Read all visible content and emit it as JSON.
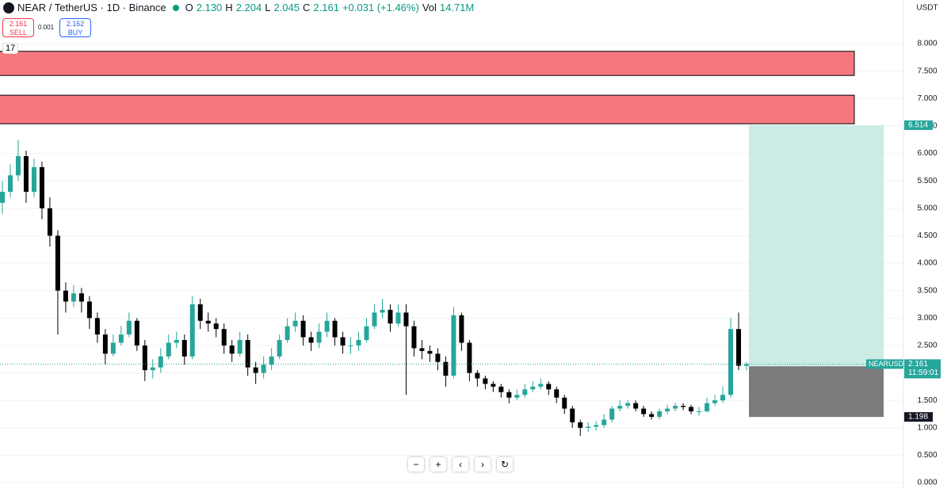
{
  "header": {
    "symbol": "NEAR / TetherUS · 1D · Binance",
    "ohlc": [
      {
        "key": "O",
        "value": "2.130"
      },
      {
        "key": "H",
        "value": "2.204"
      },
      {
        "key": "L",
        "value": "2.045"
      },
      {
        "key": "C",
        "value": "2.161"
      }
    ],
    "change": "+0.031 (+1.46%)",
    "vol_key": "Vol",
    "vol": "14.71M"
  },
  "trade": {
    "sell_price": "2.161",
    "sell": "SELL",
    "spread": "0.001",
    "buy_price": "2.162",
    "buy": "BUY"
  },
  "indicator_toggle": "17",
  "chart_data": {
    "type": "candlestick",
    "currency": "USDT",
    "ylim": [
      -0.115,
      8.795
    ],
    "yticks": [
      {
        "value": 0,
        "label": "0.000"
      },
      {
        "value": 0.5,
        "label": "0.500"
      },
      {
        "value": 1,
        "label": "1.000"
      },
      {
        "value": 1.5,
        "label": "1.500"
      },
      {
        "value": 2,
        "label": "2.000"
      },
      {
        "value": 2.5,
        "label": "2.500"
      },
      {
        "value": 3,
        "label": "3.000"
      },
      {
        "value": 3.5,
        "label": "3.500"
      },
      {
        "value": 4,
        "label": "4.000"
      },
      {
        "value": 4.5,
        "label": "4.500"
      },
      {
        "value": 5,
        "label": "5.000"
      },
      {
        "value": 5.5,
        "label": "5.500"
      },
      {
        "value": 6,
        "label": "6.000"
      },
      {
        "value": 6.5,
        "label": "6.500"
      },
      {
        "value": 7,
        "label": "7.000"
      },
      {
        "value": 7.5,
        "label": "7.500"
      },
      {
        "value": 8,
        "label": "8.000"
      }
    ],
    "grid": true,
    "series": [
      {
        "name": "NEARUSDT",
        "up_color": "#26a69a",
        "down_color": "#000000",
        "open": [
          5.1,
          5.3,
          5.6,
          5.95,
          5.3,
          5.75,
          5.0,
          4.5,
          3.5,
          3.3,
          3.45,
          3.3,
          3.0,
          2.7,
          2.35,
          2.55,
          2.7,
          2.95,
          2.5,
          2.05,
          2.1,
          2.3,
          2.55,
          2.6,
          2.3,
          3.25,
          2.95,
          2.9,
          2.8,
          2.5,
          2.35,
          2.6,
          2.1,
          2.0,
          2.15,
          2.3,
          2.6,
          2.85,
          2.95,
          2.65,
          2.55,
          2.75,
          2.95,
          2.65,
          2.5,
          2.5,
          2.6,
          2.85,
          3.1,
          3.15,
          2.9,
          3.1,
          2.85,
          2.45,
          2.4,
          2.35,
          2.2,
          1.95,
          3.05,
          2.55,
          2.0,
          1.9,
          1.8,
          1.75,
          1.65,
          1.55,
          1.6,
          1.7,
          1.75,
          1.8,
          1.7,
          1.55,
          1.35,
          1.1,
          1.0,
          1.02,
          1.05,
          1.15,
          1.35,
          1.4,
          1.45,
          1.35,
          1.25,
          1.2,
          1.3,
          1.35,
          1.4,
          1.38,
          1.3,
          1.3,
          1.45,
          1.5,
          1.6,
          2.8,
          2.13
        ],
        "high": [
          5.5,
          5.8,
          6.25,
          6.05,
          5.9,
          5.85,
          5.2,
          4.6,
          3.65,
          3.6,
          3.55,
          3.4,
          3.1,
          2.8,
          2.7,
          2.85,
          3.1,
          3.0,
          2.6,
          2.25,
          2.45,
          2.7,
          2.75,
          2.7,
          3.4,
          3.35,
          3.1,
          3.0,
          2.9,
          2.6,
          2.75,
          2.7,
          2.2,
          2.3,
          2.45,
          2.7,
          3.0,
          3.1,
          3.05,
          2.75,
          2.9,
          3.1,
          3.0,
          2.75,
          2.65,
          2.75,
          3.0,
          3.25,
          3.35,
          3.25,
          3.25,
          3.25,
          2.95,
          2.6,
          2.5,
          2.45,
          2.3,
          3.2,
          3.1,
          2.6,
          2.05,
          1.95,
          1.85,
          1.8,
          1.7,
          1.7,
          1.8,
          1.85,
          1.9,
          1.85,
          1.75,
          1.6,
          1.4,
          1.15,
          1.1,
          1.12,
          1.25,
          1.4,
          1.5,
          1.5,
          1.5,
          1.4,
          1.3,
          1.35,
          1.42,
          1.45,
          1.45,
          1.42,
          1.38,
          1.55,
          1.6,
          1.75,
          3.0,
          3.1,
          2.204
        ],
        "low": [
          4.9,
          5.2,
          5.5,
          5.1,
          5.2,
          4.8,
          4.3,
          2.7,
          3.1,
          3.2,
          3.1,
          2.8,
          2.55,
          2.15,
          2.3,
          2.5,
          2.65,
          2.4,
          1.85,
          1.9,
          2.0,
          2.25,
          2.45,
          2.15,
          2.25,
          2.8,
          2.75,
          2.65,
          2.35,
          2.2,
          2.3,
          1.95,
          1.8,
          1.9,
          2.05,
          2.25,
          2.55,
          2.75,
          2.5,
          2.4,
          2.45,
          2.65,
          2.5,
          2.35,
          2.35,
          2.4,
          2.55,
          2.8,
          3.0,
          2.75,
          2.85,
          1.6,
          2.3,
          2.25,
          2.2,
          2.05,
          1.75,
          1.9,
          2.4,
          1.85,
          1.75,
          1.7,
          1.65,
          1.55,
          1.45,
          1.5,
          1.55,
          1.65,
          1.7,
          1.6,
          1.45,
          1.25,
          1.0,
          0.85,
          0.92,
          0.95,
          1.0,
          1.1,
          1.3,
          1.35,
          1.3,
          1.2,
          1.15,
          1.15,
          1.25,
          1.3,
          1.32,
          1.25,
          1.22,
          1.28,
          1.4,
          1.45,
          1.55,
          2.05,
          2.045
        ],
        "close": [
          5.3,
          5.6,
          5.95,
          5.3,
          5.75,
          5.0,
          4.5,
          3.5,
          3.3,
          3.45,
          3.3,
          3.0,
          2.7,
          2.35,
          2.55,
          2.7,
          2.95,
          2.5,
          2.05,
          2.1,
          2.3,
          2.55,
          2.6,
          2.3,
          3.25,
          2.95,
          2.9,
          2.8,
          2.5,
          2.35,
          2.6,
          2.1,
          2.0,
          2.15,
          2.3,
          2.6,
          2.85,
          2.95,
          2.65,
          2.55,
          2.75,
          2.95,
          2.65,
          2.5,
          2.5,
          2.6,
          2.85,
          3.1,
          3.15,
          2.9,
          3.1,
          2.85,
          2.45,
          2.4,
          2.35,
          2.2,
          1.95,
          3.05,
          2.55,
          2.0,
          1.9,
          1.8,
          1.75,
          1.65,
          1.55,
          1.6,
          1.7,
          1.75,
          1.8,
          1.7,
          1.55,
          1.35,
          1.1,
          1.0,
          1.02,
          1.05,
          1.15,
          1.35,
          1.4,
          1.45,
          1.35,
          1.25,
          1.2,
          1.3,
          1.35,
          1.4,
          1.38,
          1.3,
          1.3,
          1.45,
          1.5,
          1.6,
          2.8,
          2.13,
          2.161
        ]
      }
    ],
    "last_price": 2.161,
    "countdown": "11:59:01",
    "zones": [
      {
        "top": 7.86,
        "bottom": 7.42,
        "color": "#f6777f"
      },
      {
        "top": 7.06,
        "bottom": 6.54,
        "color": "#f6777f"
      }
    ],
    "position": {
      "target": 6.514,
      "entry": 2.121,
      "stop": 1.198,
      "profit_color": "#cdebe5",
      "loss_color": "#7b7b7b"
    }
  }
}
